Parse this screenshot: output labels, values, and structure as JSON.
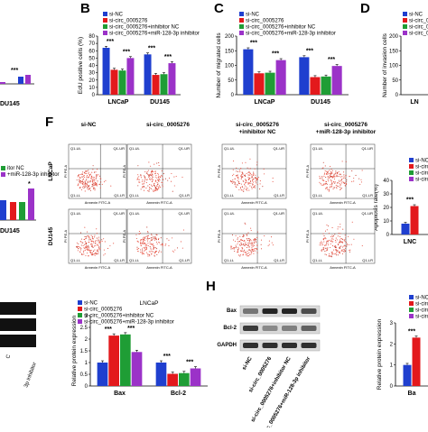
{
  "panel_labels": {
    "b": "B",
    "c": "C",
    "d": "D",
    "f": "F",
    "h": "H"
  },
  "colors": {
    "si_nc": "#1f3fcf",
    "si_circ": "#e3191c",
    "inhib_nc": "#1f9d35",
    "mir_inhib": "#9b32c8"
  },
  "legend": {
    "si_nc": "si-NC",
    "si_circ": "si-circ_0005276",
    "inhib_nc": "si-circ_0005276+inhibitor NC",
    "mir_inhib": "si-circ_0005276+miR-128-3p inhibitor"
  },
  "partial_text": {
    "a_inhib": "itor NC",
    "a_mir": "+miR-128-3p inhibitor",
    "a_cat_top": "DU145",
    "a_cat_bottom": "DU145",
    "d_cat": "LN",
    "h_cat": "Ba",
    "g_cat": "LNC",
    "g_sig": "***",
    "e_sig": "*",
    "blot_label_top_left": "C",
    "blot_label_rot": "3p inhibitor"
  },
  "flow": {
    "cols": [
      "si-NC",
      "si-circ_0005276",
      "si-circ_0005276\n+inhibitor NC",
      "si-circ_0005276\n+miR-128-3p inhibitor"
    ],
    "rows": [
      "LNCaP",
      "DU145"
    ],
    "q_ul": "Q1-UL",
    "q_ur": "Q1-UR",
    "q_ll": "Q1-LL",
    "q_lr": "Q1-LR",
    "xaxis": "Annexin FITC-A",
    "yaxis": "PI PE-A"
  },
  "blot_h": {
    "rows": [
      "Bax",
      "Bcl-2",
      "GAPDH"
    ],
    "lanes": [
      "si-NC",
      "si-circ_0005276",
      "si-circ_0005276+inhibitor NC",
      "si-circ_0005276+miR-128-3p inhibitor"
    ]
  },
  "chart_data": [
    {
      "id": "B",
      "type": "bar",
      "ylabel": "EdU positive cells (%)",
      "ylim": [
        0,
        80
      ],
      "yticks": [
        0,
        10,
        20,
        30,
        40,
        50,
        60,
        70,
        80
      ],
      "categories": [
        "LNCaP",
        "DU145"
      ],
      "series": [
        {
          "name": "si-NC",
          "values": [
            64,
            55
          ]
        },
        {
          "name": "si-circ_0005276",
          "values": [
            34,
            27
          ]
        },
        {
          "name": "si-circ_0005276+inhibitor NC",
          "values": [
            33,
            28
          ]
        },
        {
          "name": "si-circ_0005276+miR-128-3p inhibitor",
          "values": [
            50,
            43
          ]
        }
      ],
      "annotations": [
        "***",
        "***",
        "***",
        "***"
      ]
    },
    {
      "id": "C",
      "type": "bar",
      "ylabel": "Number of migrated cells",
      "ylim": [
        0,
        200
      ],
      "yticks": [
        0,
        50,
        100,
        150,
        200
      ],
      "categories": [
        "LNCaP",
        "DU145"
      ],
      "series": [
        {
          "name": "si-NC",
          "values": [
            155,
            128
          ]
        },
        {
          "name": "si-circ_0005276",
          "values": [
            73,
            60
          ]
        },
        {
          "name": "si-circ_0005276+inhibitor NC",
          "values": [
            75,
            62
          ]
        },
        {
          "name": "si-circ_0005276+miR-128-3p inhibitor",
          "values": [
            118,
            98
          ]
        }
      ],
      "annotations": [
        "***",
        "***",
        "***",
        "***"
      ]
    },
    {
      "id": "D",
      "type": "bar",
      "ylabel": "Number of invasion cells",
      "ylim": [
        0,
        200
      ],
      "yticks": [
        0,
        50,
        100,
        150,
        200
      ],
      "categories": [
        "LN"
      ],
      "series": [],
      "annotations": []
    },
    {
      "id": "G",
      "type": "bar",
      "ylabel": "Apoptosis rate(%)",
      "ylim": [
        0,
        40
      ],
      "yticks": [
        0,
        10,
        20,
        30,
        40
      ],
      "categories": [
        "LNC"
      ],
      "series": [
        {
          "name": "si-NC",
          "values": [
            8
          ]
        },
        {
          "name": "si-circ_0005276",
          "values": [
            21
          ]
        }
      ],
      "annotations": [
        "***"
      ]
    },
    {
      "id": "H-bar-left",
      "type": "bar",
      "title": "LNCaP",
      "ylabel": "Relative protein expression",
      "ylim": [
        0,
        3
      ],
      "yticks": [
        0,
        0.5,
        1.0,
        1.5,
        2.0,
        2.5,
        3.0
      ],
      "categories": [
        "Bax",
        "Bcl-2"
      ],
      "series": [
        {
          "name": "si-NC",
          "values": [
            1.0,
            1.0
          ]
        },
        {
          "name": "si-circ_0005276",
          "values": [
            2.15,
            0.52
          ]
        },
        {
          "name": "si-circ_0005276+inhibitor NC",
          "values": [
            2.2,
            0.55
          ]
        },
        {
          "name": "si-circ_0005276+miR-128-3p inhibitor",
          "values": [
            1.45,
            0.75
          ]
        }
      ],
      "annotations": [
        "***",
        "***",
        "***",
        "***"
      ]
    },
    {
      "id": "H-bar-right",
      "type": "bar",
      "ylabel": "Relative protein expression",
      "ylim": [
        0,
        3
      ],
      "yticks": [
        0,
        1,
        2,
        3
      ],
      "categories": [
        "Ba"
      ],
      "series": [
        {
          "name": "si-NC",
          "values": [
            1.0
          ]
        },
        {
          "name": "si-circ_0005276",
          "values": [
            2.3
          ]
        }
      ],
      "annotations": [
        "***"
      ]
    }
  ]
}
